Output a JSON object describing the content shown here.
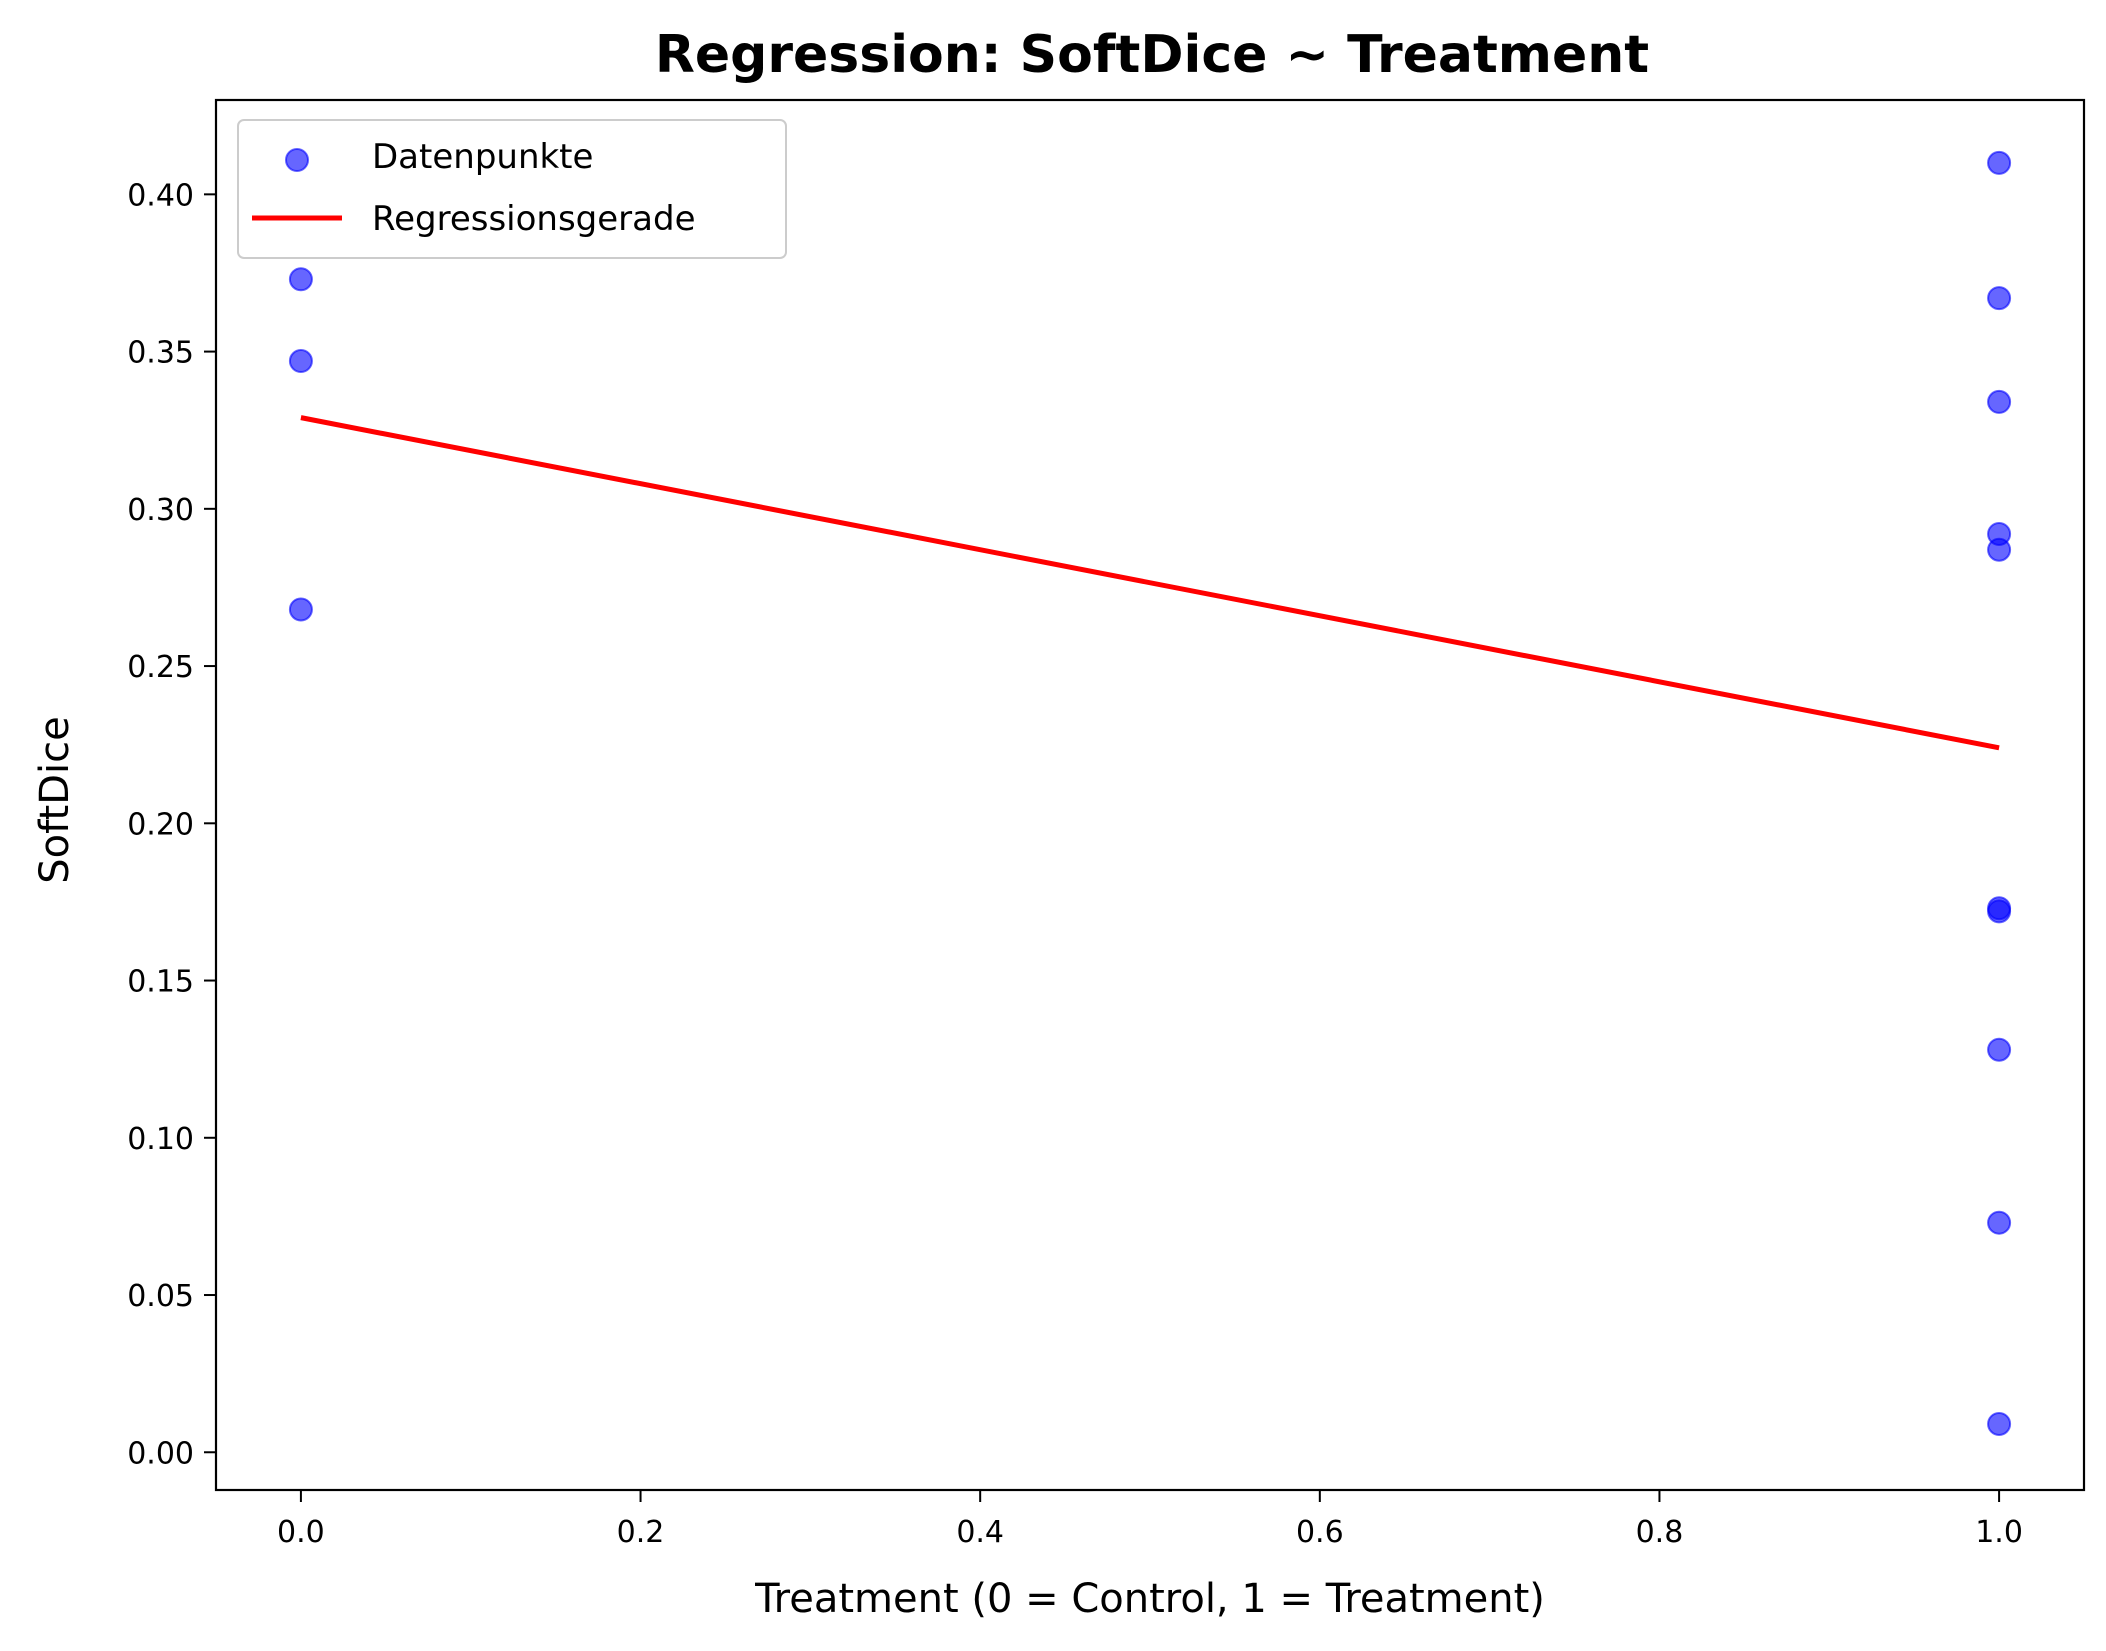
{
  "chart_data": {
    "type": "scatter",
    "title": "Regression: SoftDice ~ Treatment",
    "xlabel": "Treatment (0 = Control, 1 = Treatment)",
    "ylabel": "SoftDice",
    "xlim": [
      -0.05,
      1.05
    ],
    "ylim": [
      -0.012,
      0.43
    ],
    "xticks": [
      0.0,
      0.2,
      0.4,
      0.6,
      0.8,
      1.0
    ],
    "xtick_labels": [
      "0.0",
      "0.2",
      "0.4",
      "0.6",
      "0.8",
      "1.0"
    ],
    "yticks": [
      0.0,
      0.05,
      0.1,
      0.15,
      0.2,
      0.25,
      0.3,
      0.35,
      0.4
    ],
    "ytick_labels": [
      "0.00",
      "0.05",
      "0.10",
      "0.15",
      "0.20",
      "0.25",
      "0.30",
      "0.35",
      "0.40"
    ],
    "grid": false,
    "legend_position": "top-left",
    "series": [
      {
        "name": "Datenpunkte",
        "kind": "scatter",
        "color": "#0000ff",
        "opacity": 0.6,
        "points": [
          {
            "x": 0,
            "y": 0.373
          },
          {
            "x": 0,
            "y": 0.347
          },
          {
            "x": 0,
            "y": 0.268
          },
          {
            "x": 1,
            "y": 0.41
          },
          {
            "x": 1,
            "y": 0.367
          },
          {
            "x": 1,
            "y": 0.334
          },
          {
            "x": 1,
            "y": 0.292
          },
          {
            "x": 1,
            "y": 0.287
          },
          {
            "x": 1,
            "y": 0.173
          },
          {
            "x": 1,
            "y": 0.172
          },
          {
            "x": 1,
            "y": 0.128
          },
          {
            "x": 1,
            "y": 0.073
          },
          {
            "x": 1,
            "y": 0.009
          }
        ]
      },
      {
        "name": "Regressionsgerade",
        "kind": "line",
        "color": "#ff0000",
        "points": [
          {
            "x": 0,
            "y": 0.329
          },
          {
            "x": 1,
            "y": 0.224
          }
        ]
      }
    ]
  }
}
